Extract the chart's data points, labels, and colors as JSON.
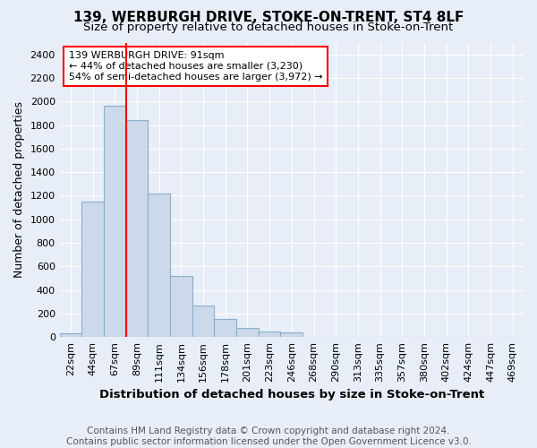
{
  "title": "139, WERBURGH DRIVE, STOKE-ON-TRENT, ST4 8LF",
  "subtitle": "Size of property relative to detached houses in Stoke-on-Trent",
  "xlabel": "Distribution of detached houses by size in Stoke-on-Trent",
  "ylabel": "Number of detached properties",
  "footer_line1": "Contains HM Land Registry data © Crown copyright and database right 2024.",
  "footer_line2": "Contains public sector information licensed under the Open Government Licence v3.0.",
  "bin_labels": [
    "22sqm",
    "44sqm",
    "67sqm",
    "89sqm",
    "111sqm",
    "134sqm",
    "156sqm",
    "178sqm",
    "201sqm",
    "223sqm",
    "246sqm",
    "268sqm",
    "290sqm",
    "313sqm",
    "335sqm",
    "357sqm",
    "380sqm",
    "402sqm",
    "424sqm",
    "447sqm",
    "469sqm"
  ],
  "bar_values": [
    30,
    1150,
    1960,
    1840,
    1220,
    520,
    265,
    150,
    80,
    45,
    40,
    5,
    5,
    5,
    5,
    5,
    5,
    5,
    5,
    5,
    5
  ],
  "bar_color": "#ccd9ea",
  "bar_edgecolor": "#8ab0cc",
  "annotation_line1": "139 WERBURGH DRIVE: 91sqm",
  "annotation_line2": "← 44% of detached houses are smaller (3,230)",
  "annotation_line3": "54% of semi-detached houses are larger (3,972) →",
  "annotation_box_color": "white",
  "annotation_box_edgecolor": "red",
  "vline_color": "red",
  "vline_x_index": 3,
  "ylim": [
    0,
    2500
  ],
  "yticks": [
    0,
    200,
    400,
    600,
    800,
    1000,
    1200,
    1400,
    1600,
    1800,
    2000,
    2200,
    2400
  ],
  "bg_color": "#e8eef8",
  "plot_bg_color": "#e8eef8",
  "grid_color": "white",
  "title_fontsize": 11,
  "subtitle_fontsize": 9.5,
  "ylabel_fontsize": 9,
  "xlabel_fontsize": 9.5,
  "tick_fontsize": 8,
  "annotation_fontsize": 8,
  "footer_fontsize": 7.5
}
